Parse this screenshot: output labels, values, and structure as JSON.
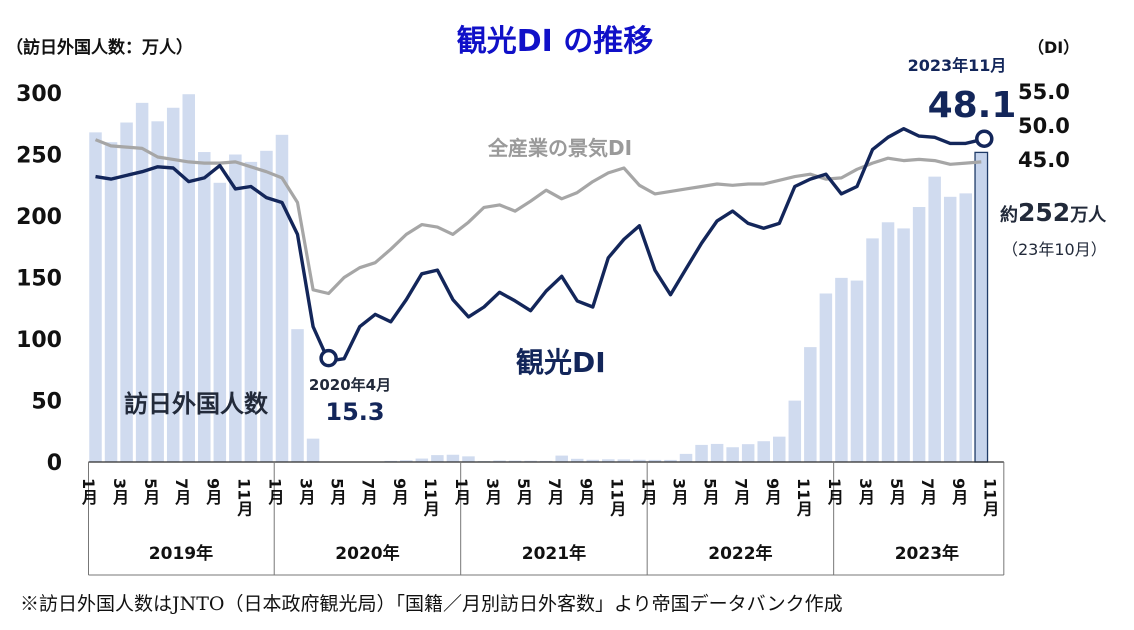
{
  "chart_data": {
    "type": "bar+line",
    "title": "観光DI の推移",
    "left_axis_label": "（訪日外国人数：万人）",
    "right_axis_label": "（DI）",
    "left_ticks": [
      "300",
      "250",
      "200",
      "150",
      "100",
      "50",
      "0"
    ],
    "left_tick_values": [
      300,
      250,
      200,
      150,
      100,
      50,
      0
    ],
    "ylim_left": [
      0,
      300
    ],
    "right_ticks": [
      "55.0",
      "50.0",
      "45.0"
    ],
    "right_tick_values": [
      55,
      50,
      45
    ],
    "year_labels": [
      "2019年",
      "2020年",
      "2021年",
      "2022年",
      "2023年"
    ],
    "month_labels": [
      "1月",
      "3月",
      "5月",
      "7月",
      "9月",
      "11月"
    ],
    "month_indices": [
      0,
      2,
      4,
      6,
      8,
      10
    ],
    "extra_month_label": "11月",
    "bars": {
      "name": "訪日外国人数",
      "unit": "万人",
      "values": [
        268,
        260,
        276,
        292,
        277,
        288,
        299,
        252,
        227,
        250,
        244,
        253,
        266,
        108,
        19,
        0.3,
        0.2,
        0.3,
        0.4,
        0.9,
        1.4,
        2.8,
        5.6,
        5.9,
        4.6,
        0.7,
        1.2,
        1.1,
        1.0,
        0.9,
        5.2,
        2.6,
        1.8,
        2.2,
        2.1,
        1.8,
        1.7,
        1.7,
        6.6,
        13.9,
        14.7,
        12.0,
        14.5,
        16.9,
        20.6,
        49.9,
        93.4,
        137.0,
        149.7,
        147.5,
        181.8,
        194.9,
        189.9,
        207.3,
        232.0,
        215.6,
        218.4,
        251.7
      ]
    },
    "series": [
      {
        "name": "観光DI",
        "axis": "left-scale",
        "values": [
          232,
          230,
          233,
          236,
          240,
          239,
          228,
          231,
          241,
          222,
          224,
          215,
          211,
          185,
          110,
          82,
          84,
          110,
          120,
          114,
          132,
          153,
          156,
          132,
          118,
          126,
          138,
          131,
          123,
          139,
          151,
          131,
          126,
          166,
          181,
          192,
          156,
          136,
          157,
          178,
          196,
          204,
          194,
          190,
          194,
          224,
          230,
          234,
          218,
          224,
          254,
          264,
          271,
          265,
          264,
          259,
          259,
          262
        ]
      },
      {
        "name": "全産業の景気DI",
        "axis": "left-scale",
        "values": [
          262,
          257,
          256,
          255,
          248,
          246,
          244,
          243,
          243,
          244,
          240,
          236,
          231,
          211,
          140,
          137,
          150,
          158,
          162,
          173,
          185,
          193,
          191,
          185,
          195,
          207,
          209,
          204,
          212,
          221,
          214,
          219,
          228,
          235,
          239,
          225,
          218,
          220,
          222,
          224,
          226,
          225,
          226,
          226,
          229,
          232,
          234,
          230,
          231,
          238,
          243,
          247,
          245,
          246,
          245,
          242,
          243,
          244
        ]
      }
    ],
    "annotations": {
      "bar_series_label": "訪日外国人数",
      "tourism_label": "観光DI",
      "allind_label": "全産業の景気DI",
      "low_date": "2020年4月",
      "low_value": "15.3",
      "high_date": "2023年11月",
      "high_value": "48.1",
      "visitors_prefix": "約",
      "visitors_num": "252",
      "visitors_unit": "万人",
      "visitors_note": "（23年10月）"
    }
  },
  "footnote": "※訪日外国人数はJNTO（日本政府観光局）「国籍／月別訪日外客数」より帝国データバンク作成",
  "colors": {
    "bar": "#d0dbef",
    "bar_highlight": "#c6d4ec",
    "tourism_line": "#13265a",
    "allind_line": "#a6a6a6",
    "title": "#1010c8",
    "text": "#111111",
    "text_secondary": "#222a3a",
    "axis": "#2a2a2a"
  }
}
